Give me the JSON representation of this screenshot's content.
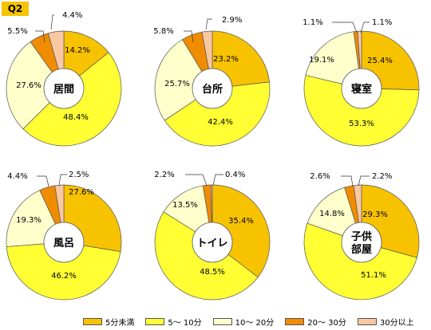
{
  "badge": "Q2",
  "categories": [
    "5分未満",
    "5～ 10分",
    "10～ 20分",
    "20～ 30分",
    "30分以上"
  ],
  "colors": [
    "#f7c200",
    "#ffff33",
    "#ffffcc",
    "#f08c00",
    "#f9c8a0"
  ],
  "chart_data": [
    {
      "type": "pie",
      "title": "居間",
      "values": [
        14.2,
        48.4,
        27.6,
        5.5,
        4.4
      ],
      "labels": [
        "14.2%",
        "48.4%",
        "27.6%",
        "5.5%",
        "4.4%"
      ]
    },
    {
      "type": "pie",
      "title": "台所",
      "values": [
        23.2,
        42.4,
        25.7,
        5.8,
        2.9
      ],
      "labels": [
        "23.2%",
        "42.4%",
        "25.7%",
        "5.8%",
        "2.9%"
      ]
    },
    {
      "type": "pie",
      "title": "寝室",
      "values": [
        25.4,
        53.3,
        19.1,
        1.1,
        1.1
      ],
      "labels": [
        "25.4%",
        "53.3%",
        "19.1%",
        "1.1%",
        "1.1%"
      ]
    },
    {
      "type": "pie",
      "title": "風呂",
      "values": [
        27.6,
        46.2,
        19.3,
        4.4,
        2.5
      ],
      "labels": [
        "27.6%",
        "46.2%",
        "19.3%",
        "4.4%",
        "2.5%"
      ]
    },
    {
      "type": "pie",
      "title": "トイレ",
      "values": [
        35.4,
        48.5,
        13.5,
        2.2,
        0.4
      ],
      "labels": [
        "35.4%",
        "48.5%",
        "13.5%",
        "2.2%",
        "0.4%"
      ]
    },
    {
      "type": "pie",
      "title": "子供部屋",
      "values": [
        29.3,
        51.1,
        14.8,
        2.6,
        2.2
      ],
      "labels": [
        "29.3%",
        "51.1%",
        "14.8%",
        "2.6%",
        "2.2%"
      ]
    }
  ]
}
